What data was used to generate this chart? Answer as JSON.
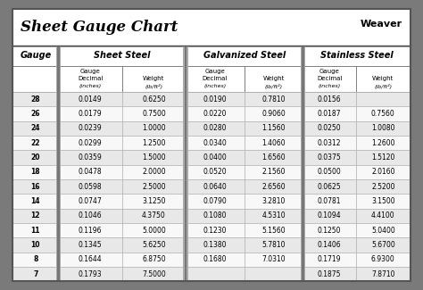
{
  "title": "Sheet Gauge Chart",
  "bg_outer": "#7a7a7a",
  "bg_white": "#ffffff",
  "bg_row_shaded": "#e8e8e8",
  "bg_row_plain": "#f8f8f8",
  "header_bg": "#d0d0d0",
  "border_dark": "#555555",
  "border_mid": "#888888",
  "border_light": "#aaaaaa",
  "gauges": [
    28,
    26,
    24,
    22,
    20,
    18,
    16,
    14,
    12,
    11,
    10,
    8,
    7
  ],
  "sheet_steel_decimal": [
    "0.0149",
    "0.0179",
    "0.0239",
    "0.0299",
    "0.0359",
    "0.0478",
    "0.0598",
    "0.0747",
    "0.1046",
    "0.1196",
    "0.1345",
    "0.1644",
    "0.1793"
  ],
  "sheet_steel_weight": [
    "0.6250",
    "0.7500",
    "1.0000",
    "1.2500",
    "1.5000",
    "2.0000",
    "2.5000",
    "3.1250",
    "4.3750",
    "5.0000",
    "5.6250",
    "6.8750",
    "7.5000"
  ],
  "galvanized_decimal": [
    "0.0190",
    "0.0220",
    "0.0280",
    "0.0340",
    "0.0400",
    "0.0520",
    "0.0640",
    "0.0790",
    "0.1080",
    "0.1230",
    "0.1380",
    "0.1680",
    ""
  ],
  "galvanized_weight": [
    "0.7810",
    "0.9060",
    "1.1560",
    "1.4060",
    "1.6560",
    "2.1560",
    "2.6560",
    "3.2810",
    "4.5310",
    "5.1560",
    "5.7810",
    "7.0310",
    ""
  ],
  "stainless_decimal": [
    "0.0156",
    "0.0187",
    "0.0250",
    "0.0312",
    "0.0375",
    "0.0500",
    "0.0625",
    "0.0781",
    "0.1094",
    "0.1250",
    "0.1406",
    "0.1719",
    "0.1875"
  ],
  "stainless_weight": [
    "",
    "0.7560",
    "1.0080",
    "1.2600",
    "1.5120",
    "2.0160",
    "2.5200",
    "3.1500",
    "4.4100",
    "5.0400",
    "5.6700",
    "6.9300",
    "7.8710"
  ],
  "figsize": [
    4.74,
    3.25
  ],
  "dpi": 100
}
